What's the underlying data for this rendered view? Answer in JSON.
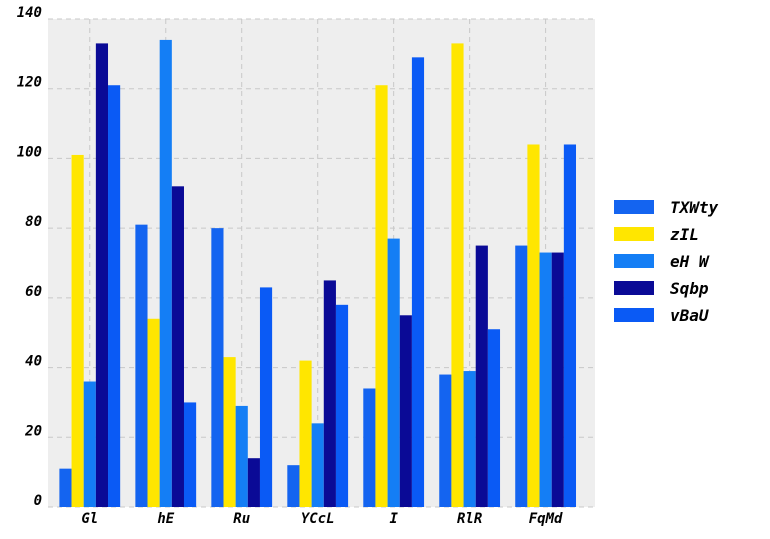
{
  "chart_data": {
    "type": "bar",
    "categories": [
      "Gl",
      "hE",
      "Ru",
      "YCcL",
      "I",
      "RlR",
      "FqMd"
    ],
    "series": [
      {
        "name": "TXWty",
        "color": "#1464f0",
        "values": [
          11,
          81,
          80,
          12,
          34,
          38,
          75
        ]
      },
      {
        "name": "zIL",
        "color": "#ffe600",
        "values": [
          101,
          54,
          43,
          42,
          121,
          133,
          104
        ]
      },
      {
        "name": "eH W",
        "color": "#147ef5",
        "values": [
          36,
          134,
          29,
          24,
          77,
          39,
          73
        ]
      },
      {
        "name": "Sqbp",
        "color": "#0a0a96",
        "values": [
          133,
          92,
          14,
          65,
          55,
          75,
          73
        ]
      },
      {
        "name": "vBaU",
        "color": "#0a5af5",
        "values": [
          121,
          30,
          63,
          58,
          129,
          51,
          104
        ]
      }
    ],
    "ylim": [
      0,
      140
    ],
    "yticks": [
      0,
      20,
      40,
      60,
      80,
      100,
      120,
      140
    ],
    "grid": true,
    "legend_position": "right",
    "plot_background": "#eeeeee"
  }
}
